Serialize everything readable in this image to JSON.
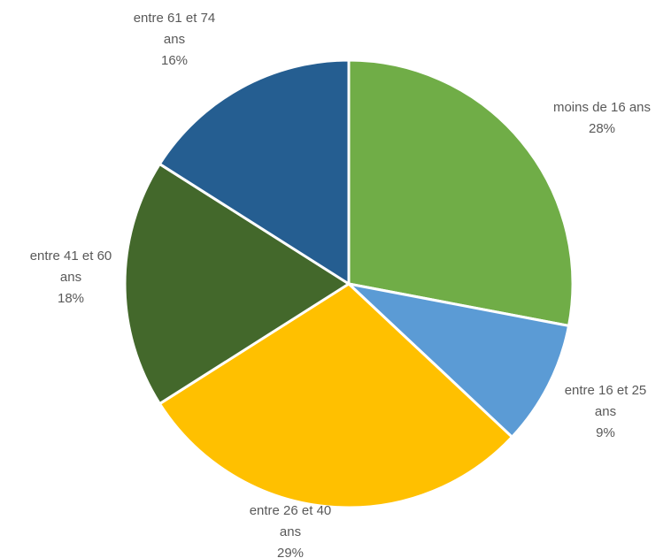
{
  "chart_data": {
    "type": "pie",
    "title": "",
    "start_angle_deg": 0,
    "direction": "clockwise",
    "legend": "none",
    "slices": [
      {
        "label_lines": [
          "moins de 16 ans"
        ],
        "percent_label": "28%",
        "value": 28,
        "color": "#70AD47"
      },
      {
        "label_lines": [
          "entre 16 et 25",
          "ans"
        ],
        "percent_label": "9%",
        "value": 9,
        "color": "#5B9BD5"
      },
      {
        "label_lines": [
          "entre 26 et 40",
          "ans"
        ],
        "percent_label": "29%",
        "value": 29,
        "color": "#FFC000"
      },
      {
        "label_lines": [
          "entre 41 et 60",
          "ans"
        ],
        "percent_label": "18%",
        "value": 18,
        "color": "#43682B"
      },
      {
        "label_lines": [
          "entre 61 et 74",
          "ans"
        ],
        "percent_label": "16%",
        "value": 16,
        "color": "#255E91"
      }
    ]
  }
}
